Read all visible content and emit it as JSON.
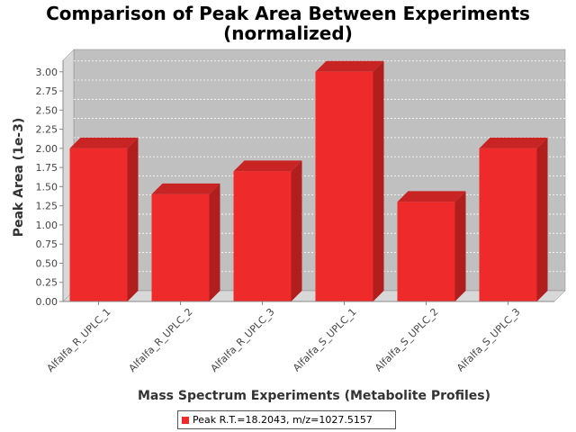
{
  "chart_data": {
    "type": "bar",
    "title": "Comparison of Peak Area Between Experiments",
    "subtitle": "(normalized)",
    "xlabel": "Mass Spectrum Experiments (Metabolite Profiles)",
    "ylabel": "Peak Area (1e-3)",
    "ylim": [
      0,
      3.15
    ],
    "yticks": [
      "0.00",
      "0.25",
      "0.50",
      "0.75",
      "1.00",
      "1.25",
      "1.50",
      "1.75",
      "2.00",
      "2.25",
      "2.50",
      "2.75",
      "3.00"
    ],
    "categories": [
      "Alfalfa_R_UPLC_1",
      "Alfalfa_R_UPLC_2",
      "Alfalfa_R_UPLC_3",
      "Alfalfa_S_UPLC_1",
      "Alfalfa_S_UPLC_2",
      "Alfalfa_S_UPLC_3"
    ],
    "series": [
      {
        "name": "Peak R.T.=18.2043, m/z=1027.5157",
        "values": [
          2.0,
          1.4,
          1.7,
          3.0,
          1.3,
          2.0
        ]
      }
    ],
    "grid": true,
    "legend_position": "bottom",
    "colors": {
      "bar": "#ee2a2a",
      "bar_side": "#b01e1e",
      "bar_top": "#c82424",
      "plot_bg": "#c0c0c0",
      "wall": "#d8d8d8"
    }
  }
}
